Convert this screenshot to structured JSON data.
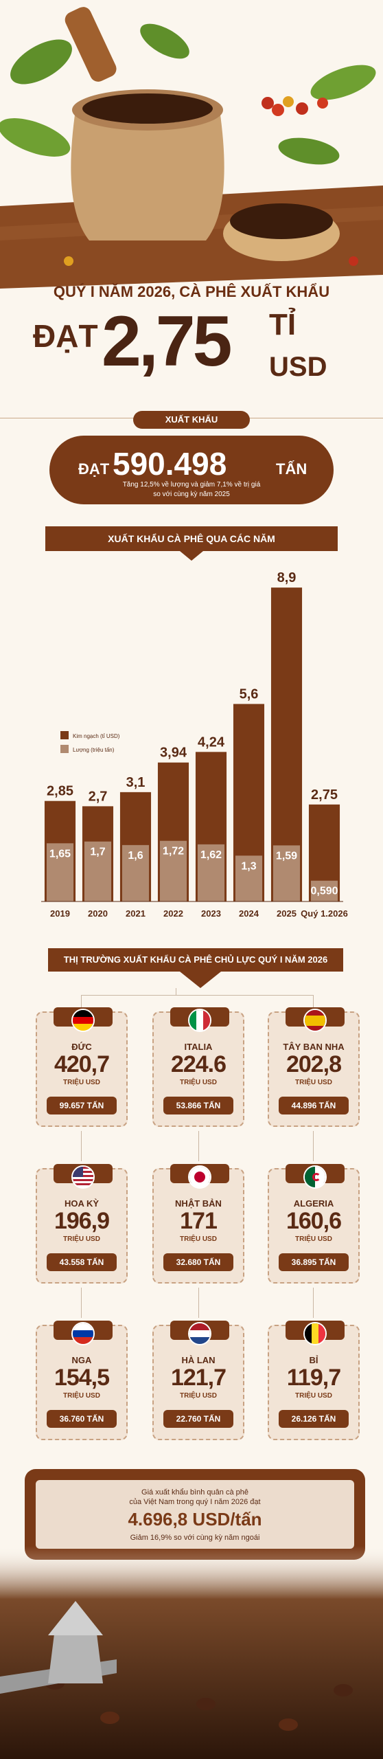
{
  "hero": {
    "title": "QUÝ I NĂM 2026, CÀ PHÊ XUẤT KHẨU",
    "prefix": "ĐẠT",
    "number": "2,75",
    "unit_top": "TỈ",
    "unit_bottom": "USD"
  },
  "export": {
    "label": "XUẤT KHẨU",
    "prefix": "ĐẠT",
    "value": "590.498",
    "unit": "TẤN",
    "sub1": "Tăng 12,5% về lượng và giảm 7,1% về trị giá",
    "sub2": "so với cùng kỳ năm 2025"
  },
  "chart_header": "XUẤT KHẨU CÀ PHÊ QUA CÁC NĂM",
  "chart_data": {
    "type": "bar",
    "categories": [
      "2019",
      "2020",
      "2021",
      "2022",
      "2023",
      "2024",
      "2025",
      "Quý 1.2026"
    ],
    "series": [
      {
        "name": "Kim ngạch (tỉ USD)",
        "values": [
          2.85,
          2.7,
          3.1,
          3.94,
          4.24,
          5.6,
          8.9,
          2.75
        ],
        "labels": [
          "2,85",
          "2,7",
          "3,1",
          "3,94",
          "4,24",
          "5,6",
          "8,9",
          "2,75"
        ],
        "color": "#7a3a17"
      },
      {
        "name": "Lượng (triệu tấn)",
        "values": [
          1.65,
          1.7,
          1.6,
          1.72,
          1.62,
          1.3,
          1.59,
          0.59
        ],
        "labels": [
          "1,65",
          "1,7",
          "1,6",
          "1,72",
          "1,62",
          "1,3",
          "1,59",
          "0,590"
        ],
        "color": "#b08a70"
      }
    ],
    "ylim": [
      0,
      9
    ],
    "legend": "left"
  },
  "markets": {
    "header": "THỊ TRƯỜNG XUẤT KHẨU CÀ PHÊ CHỦ LỰC QUÝ I NĂM 2026",
    "unit": "TRIỆU USD",
    "items": [
      {
        "name": "ĐỨC",
        "value": "420,7",
        "volume": "99.657 TẤN",
        "flag": "germany"
      },
      {
        "name": "ITALIA",
        "value": "224.6",
        "volume": "53.866 TẤN",
        "flag": "italy"
      },
      {
        "name": "TÂY BAN NHA",
        "value": "202,8",
        "volume": "44.896 TẤN",
        "flag": "spain"
      },
      {
        "name": "HOA KỲ",
        "value": "196,9",
        "volume": "43.558  TẤN",
        "flag": "usa"
      },
      {
        "name": "NHẬT BẢN",
        "value": "171",
        "volume": "32.680 TẤN",
        "flag": "japan"
      },
      {
        "name": "ALGERIA",
        "value": "160,6",
        "volume": "36.895 TẤN",
        "flag": "algeria"
      },
      {
        "name": "NGA",
        "value": "154,5",
        "volume": "36.760 TẤN",
        "flag": "russia"
      },
      {
        "name": "HÀ LAN",
        "value": "121,7",
        "volume": "22.760  TẤN",
        "flag": "netherlands"
      },
      {
        "name": "BỈ",
        "value": "119,7",
        "volume": "26.126 TẤN",
        "flag": "belgium"
      }
    ]
  },
  "price": {
    "line1": "Giá xuất khẩu bình quân cà phê",
    "line2": "của Việt Nam trong quý I năm 2026 đạt",
    "value": "4.696,8 USD/tấn",
    "line3": "Giảm 16,9% so với cùng kỳ năm ngoái"
  },
  "colors": {
    "brown": "#7a3a17",
    "light_brown": "#b08a70",
    "cream": "#fbf6ee"
  }
}
